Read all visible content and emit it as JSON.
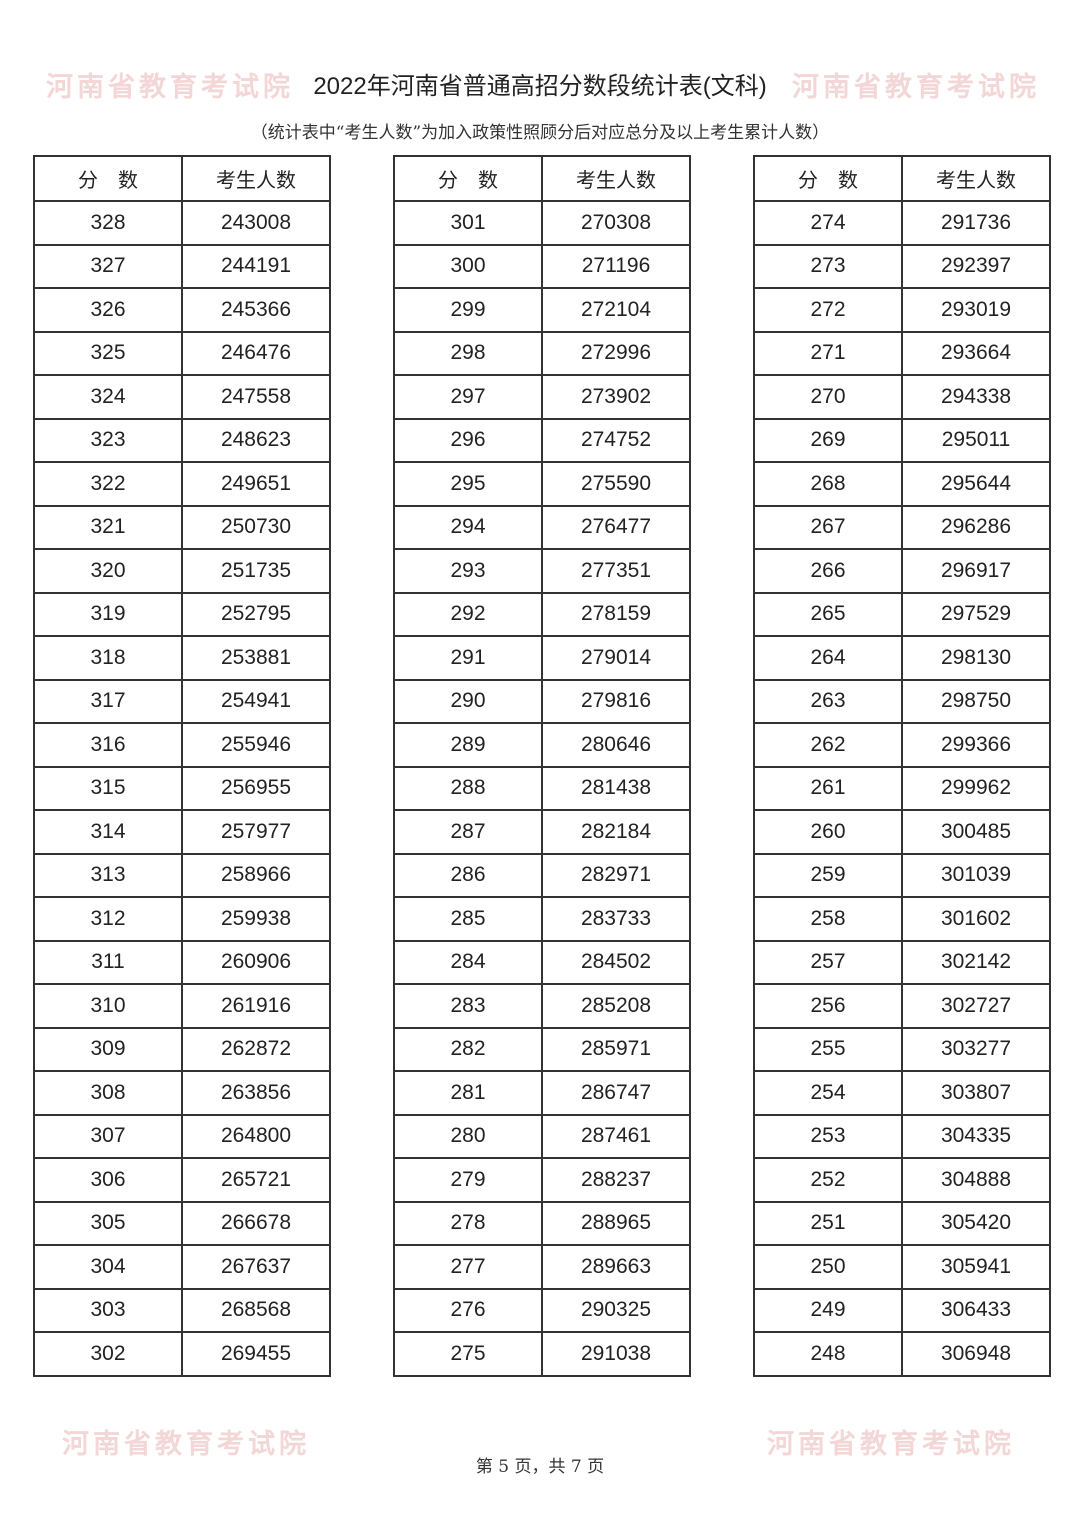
{
  "title": "2022年河南省普通高招分数段统计表(文科)",
  "subtitle": "（统计表中“考生人数”为加入政策性照顾分后对应总分及以上考生累计人数）",
  "watermark": "河南省教育考试院",
  "columns": {
    "score": "分　数",
    "count": "考生人数"
  },
  "tables": [
    {
      "rows": [
        [
          "328",
          "243008"
        ],
        [
          "327",
          "244191"
        ],
        [
          "326",
          "245366"
        ],
        [
          "325",
          "246476"
        ],
        [
          "324",
          "247558"
        ],
        [
          "323",
          "248623"
        ],
        [
          "322",
          "249651"
        ],
        [
          "321",
          "250730"
        ],
        [
          "320",
          "251735"
        ],
        [
          "319",
          "252795"
        ],
        [
          "318",
          "253881"
        ],
        [
          "317",
          "254941"
        ],
        [
          "316",
          "255946"
        ],
        [
          "315",
          "256955"
        ],
        [
          "314",
          "257977"
        ],
        [
          "313",
          "258966"
        ],
        [
          "312",
          "259938"
        ],
        [
          "311",
          "260906"
        ],
        [
          "310",
          "261916"
        ],
        [
          "309",
          "262872"
        ],
        [
          "308",
          "263856"
        ],
        [
          "307",
          "264800"
        ],
        [
          "306",
          "265721"
        ],
        [
          "305",
          "266678"
        ],
        [
          "304",
          "267637"
        ],
        [
          "303",
          "268568"
        ],
        [
          "302",
          "269455"
        ]
      ]
    },
    {
      "rows": [
        [
          "301",
          "270308"
        ],
        [
          "300",
          "271196"
        ],
        [
          "299",
          "272104"
        ],
        [
          "298",
          "272996"
        ],
        [
          "297",
          "273902"
        ],
        [
          "296",
          "274752"
        ],
        [
          "295",
          "275590"
        ],
        [
          "294",
          "276477"
        ],
        [
          "293",
          "277351"
        ],
        [
          "292",
          "278159"
        ],
        [
          "291",
          "279014"
        ],
        [
          "290",
          "279816"
        ],
        [
          "289",
          "280646"
        ],
        [
          "288",
          "281438"
        ],
        [
          "287",
          "282184"
        ],
        [
          "286",
          "282971"
        ],
        [
          "285",
          "283733"
        ],
        [
          "284",
          "284502"
        ],
        [
          "283",
          "285208"
        ],
        [
          "282",
          "285971"
        ],
        [
          "281",
          "286747"
        ],
        [
          "280",
          "287461"
        ],
        [
          "279",
          "288237"
        ],
        [
          "278",
          "288965"
        ],
        [
          "277",
          "289663"
        ],
        [
          "276",
          "290325"
        ],
        [
          "275",
          "291038"
        ]
      ]
    },
    {
      "rows": [
        [
          "274",
          "291736"
        ],
        [
          "273",
          "292397"
        ],
        [
          "272",
          "293019"
        ],
        [
          "271",
          "293664"
        ],
        [
          "270",
          "294338"
        ],
        [
          "269",
          "295011"
        ],
        [
          "268",
          "295644"
        ],
        [
          "267",
          "296286"
        ],
        [
          "266",
          "296917"
        ],
        [
          "265",
          "297529"
        ],
        [
          "264",
          "298130"
        ],
        [
          "263",
          "298750"
        ],
        [
          "262",
          "299366"
        ],
        [
          "261",
          "299962"
        ],
        [
          "260",
          "300485"
        ],
        [
          "259",
          "301039"
        ],
        [
          "258",
          "301602"
        ],
        [
          "257",
          "302142"
        ],
        [
          "256",
          "302727"
        ],
        [
          "255",
          "303277"
        ],
        [
          "254",
          "303807"
        ],
        [
          "253",
          "304335"
        ],
        [
          "252",
          "304888"
        ],
        [
          "251",
          "305420"
        ],
        [
          "250",
          "305941"
        ],
        [
          "249",
          "306433"
        ],
        [
          "248",
          "306948"
        ]
      ]
    }
  ],
  "footer": "第 5 页，共 7 页"
}
